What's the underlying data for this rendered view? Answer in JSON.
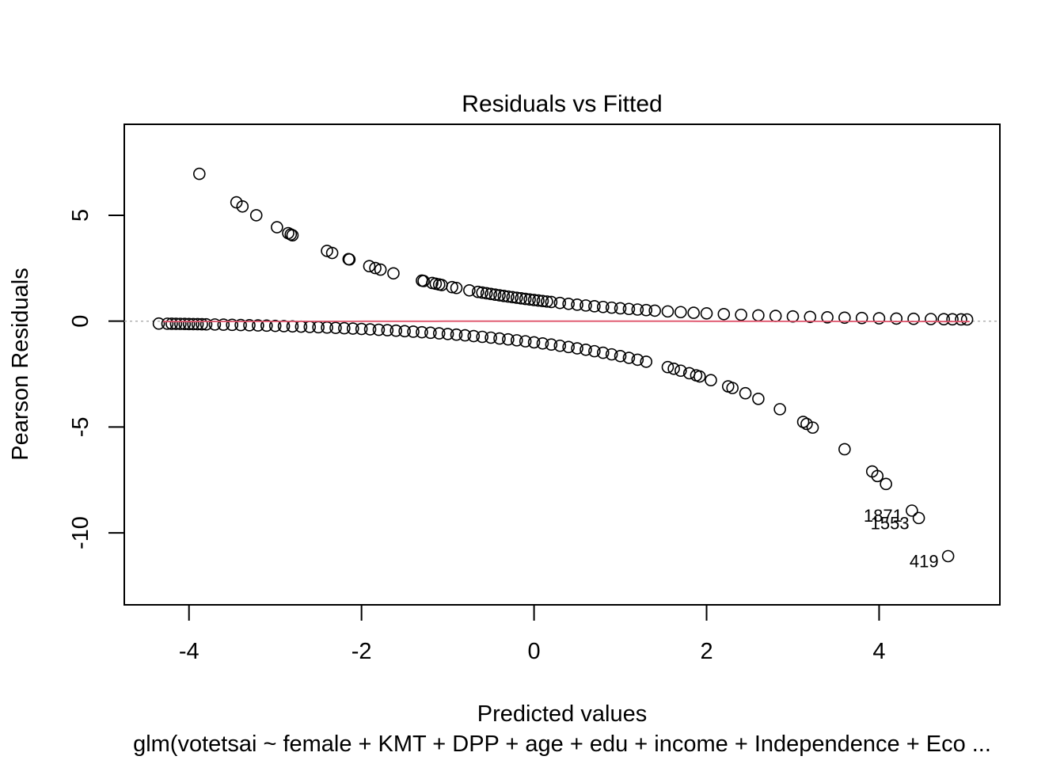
{
  "chart_data": {
    "type": "scatter",
    "title": "Residuals vs Fitted",
    "xlabel": "Predicted values",
    "ylabel": "Pearson Residuals",
    "subcaption": "glm(votetsai ~ female + KMT + DPP + age + edu + income + Independence + Eco ...",
    "xlim": [
      -4.75,
      5.4
    ],
    "ylim": [
      -13.4,
      9.3
    ],
    "x_ticks": [
      -4,
      -2,
      0,
      2,
      4
    ],
    "x_tick_labels": [
      "-4",
      "-2",
      "0",
      "2",
      "4"
    ],
    "y_ticks": [
      -10,
      -5,
      0,
      5
    ],
    "y_tick_labels": [
      "-10",
      "-5",
      "0",
      "5"
    ],
    "reference_line": {
      "y": 0,
      "style": "dotted",
      "color": "#aaaaaa"
    },
    "smooth_line_color": "#df536b",
    "point_color": "#000000",
    "labeled_points": [
      {
        "x": 4.38,
        "y": -8.95,
        "label": "1871"
      },
      {
        "x": 4.46,
        "y": -9.3,
        "label": "1553"
      },
      {
        "x": 4.8,
        "y": -11.1,
        "label": "419"
      }
    ],
    "upper_branch_x": [
      -3.88,
      -3.45,
      -3.38,
      -3.22,
      -2.98,
      -2.85,
      -2.82,
      -2.8,
      -2.4,
      -2.34,
      -2.15,
      -2.14,
      -1.91,
      -1.84,
      -1.78,
      -1.63,
      -1.3,
      -1.28,
      -1.18,
      -1.14,
      -1.1,
      -1.07,
      -0.95,
      -0.9,
      -0.75,
      -0.65,
      -0.6,
      -0.55,
      -0.5,
      -0.45,
      -0.4,
      -0.35,
      -0.3,
      -0.25,
      -0.2,
      -0.15,
      -0.1,
      -0.05,
      0,
      0.05,
      0.1,
      0.15,
      0.2,
      0.3,
      0.4,
      0.5,
      0.6,
      0.7,
      0.8,
      0.9,
      1.0,
      1.1,
      1.2,
      1.3,
      1.4,
      1.55,
      1.7,
      1.85,
      2.0,
      2.2,
      2.4,
      2.6,
      2.8,
      3.0,
      3.2,
      3.4,
      3.6,
      3.8,
      4.0,
      4.2,
      4.4,
      4.6,
      4.75,
      4.85,
      4.95,
      5.02
    ],
    "lower_branch_x": [
      -4.35,
      -4.25,
      -4.2,
      -4.15,
      -4.1,
      -4.05,
      -4.0,
      -3.95,
      -3.9,
      -3.85,
      -3.8,
      -3.7,
      -3.6,
      -3.5,
      -3.4,
      -3.3,
      -3.2,
      -3.1,
      -3.0,
      -2.9,
      -2.8,
      -2.7,
      -2.6,
      -2.5,
      -2.4,
      -2.3,
      -2.2,
      -2.1,
      -2.0,
      -1.9,
      -1.8,
      -1.7,
      -1.6,
      -1.5,
      -1.4,
      -1.3,
      -1.2,
      -1.1,
      -1.0,
      -0.9,
      -0.8,
      -0.7,
      -0.6,
      -0.5,
      -0.4,
      -0.3,
      -0.2,
      -0.1,
      0,
      0.1,
      0.2,
      0.3,
      0.4,
      0.5,
      0.6,
      0.7,
      0.8,
      0.9,
      1.0,
      1.1,
      1.2,
      1.3,
      1.55,
      1.62,
      1.7,
      1.8,
      1.88,
      1.92,
      2.05,
      2.25,
      2.3,
      2.45,
      2.6,
      2.85,
      3.12,
      3.16,
      3.23,
      3.6,
      3.92,
      3.98,
      4.08
    ]
  }
}
